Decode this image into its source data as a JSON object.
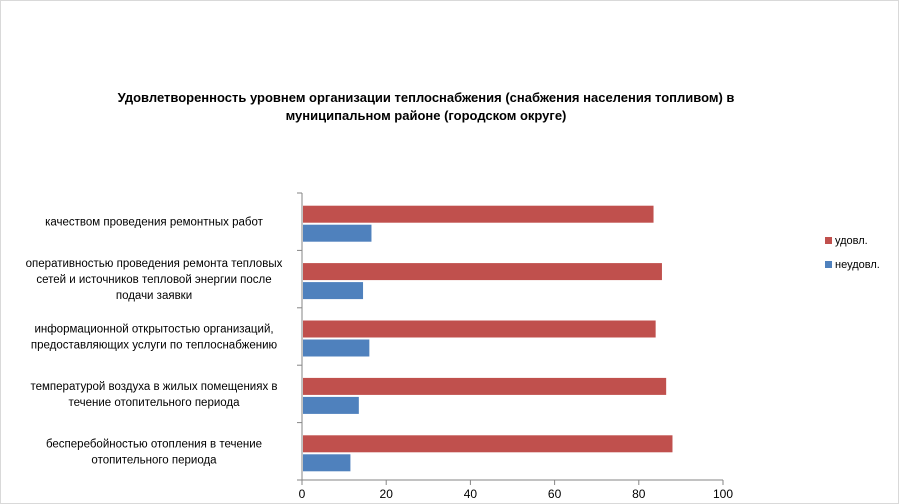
{
  "chart_data": {
    "type": "bar",
    "orientation": "horizontal",
    "title_lines": [
      "Удовлетворенность уровнем организации теплоснабжения (снабжения населения топливом) в",
      "муниципальном районе (городском округе)"
    ],
    "categories": [
      [
        "качеством проведения ремонтных работ"
      ],
      [
        "оперативностью проведения ремонта тепловых",
        "сетей и источников тепловой энергии после",
        "подачи заявки"
      ],
      [
        "информационной открытостью организаций,",
        "предоставляющих услуги по теплоснабжению"
      ],
      [
        "температурой воздуха в жилых помещениях в",
        "течение отопительного периода"
      ],
      [
        "бесперебойностью отопления в течение",
        "отопительного периода"
      ]
    ],
    "series": [
      {
        "name": "удовл.",
        "color": "#c0504d",
        "values": [
          83.5,
          85.5,
          84,
          86.5,
          88
        ]
      },
      {
        "name": "неудовл.",
        "color": "#4f81bd",
        "values": [
          16.5,
          14.5,
          16,
          13.5,
          11.5
        ]
      }
    ],
    "xlim": [
      0,
      100
    ],
    "xticks": [
      0,
      20,
      40,
      60,
      80,
      100
    ],
    "grid": false,
    "legend": "right"
  }
}
